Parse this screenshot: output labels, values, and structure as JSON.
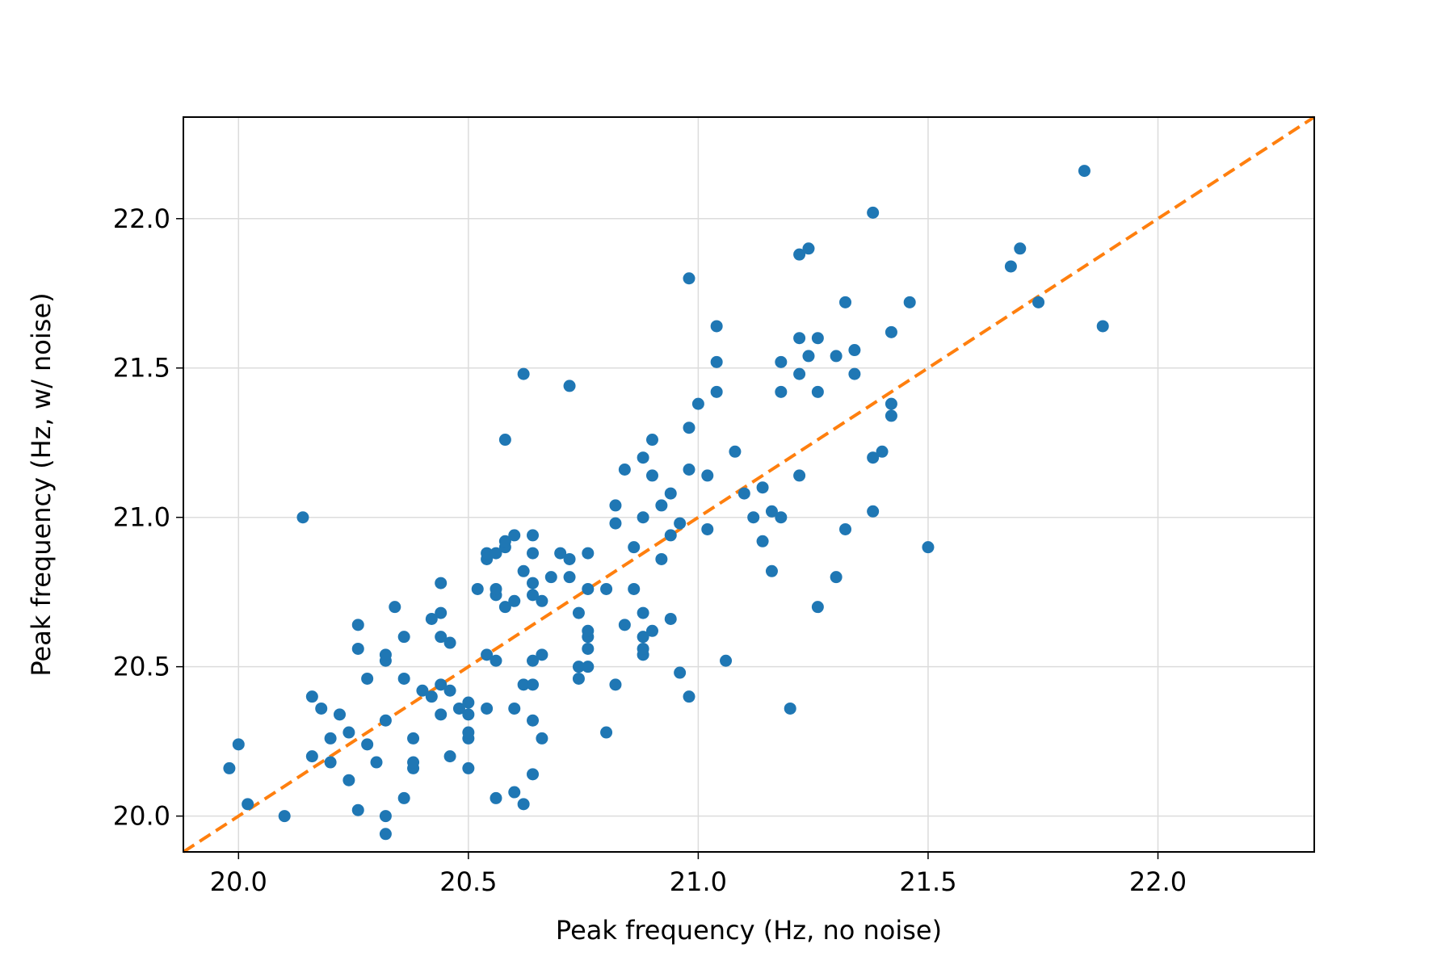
{
  "chart_data": {
    "type": "scatter",
    "title": "",
    "xlabel": "Peak frequency (Hz, no noise)",
    "ylabel": "Peak frequency (Hz, w/ noise)",
    "xlim": [
      19.88,
      22.34
    ],
    "ylim": [
      19.88,
      22.34
    ],
    "xticks": [
      "20.0",
      "20.5",
      "21.0",
      "21.5",
      "22.0"
    ],
    "yticks": [
      "20.0",
      "20.5",
      "21.0",
      "21.5",
      "22.0"
    ],
    "grid": true,
    "legend": "none",
    "colors": {
      "points": "#1f77b4",
      "reference_line": "#ff7f0e"
    },
    "reference_line": {
      "style": "dashed",
      "x": [
        19.88,
        22.34
      ],
      "y": [
        19.88,
        22.34
      ]
    },
    "series": [
      {
        "x": [
          19.98,
          20.0,
          20.02,
          20.1,
          20.14,
          20.16,
          20.16,
          20.18,
          20.2,
          20.2,
          20.22,
          20.24,
          20.24,
          20.26,
          20.26,
          20.26,
          20.28,
          20.28,
          20.3,
          20.32,
          20.32,
          20.32,
          20.32,
          20.32,
          20.34,
          20.36,
          20.36,
          20.36,
          20.38,
          20.38,
          20.38,
          20.4,
          20.42,
          20.42,
          20.44,
          20.44,
          20.44,
          20.44,
          20.44,
          20.46,
          20.46,
          20.46,
          20.48,
          20.5,
          20.5,
          20.5,
          20.5,
          20.5,
          20.52,
          20.54,
          20.54,
          20.54,
          20.54,
          20.56,
          20.56,
          20.56,
          20.56,
          20.56,
          20.58,
          20.58,
          20.58,
          20.58,
          20.6,
          20.6,
          20.6,
          20.6,
          20.62,
          20.62,
          20.62,
          20.62,
          20.64,
          20.64,
          20.64,
          20.64,
          20.64,
          20.64,
          20.64,
          20.64,
          20.66,
          20.66,
          20.66,
          20.68,
          20.7,
          20.72,
          20.72,
          20.72,
          20.74,
          20.74,
          20.74,
          20.76,
          20.76,
          20.76,
          20.76,
          20.76,
          20.76,
          20.8,
          20.8,
          20.82,
          20.82,
          20.82,
          20.84,
          20.84,
          20.86,
          20.86,
          20.88,
          20.88,
          20.88,
          20.88,
          20.88,
          20.88,
          20.9,
          20.9,
          20.9,
          20.92,
          20.92,
          20.94,
          20.94,
          20.94,
          20.96,
          20.96,
          20.98,
          20.98,
          20.98,
          20.98,
          21.0,
          21.02,
          21.02,
          21.04,
          21.04,
          21.04,
          21.06,
          21.08,
          21.1,
          21.12,
          21.14,
          21.14,
          21.16,
          21.16,
          21.18,
          21.18,
          21.18,
          21.2,
          21.22,
          21.22,
          21.22,
          21.22,
          21.24,
          21.24,
          21.26,
          21.26,
          21.26,
          21.3,
          21.3,
          21.32,
          21.32,
          21.34,
          21.34,
          21.38,
          21.38,
          21.38,
          21.4,
          21.42,
          21.42,
          21.42,
          21.46,
          21.5,
          21.68,
          21.7,
          21.74,
          21.84,
          21.88
        ],
        "y": [
          20.16,
          20.24,
          20.04,
          20.0,
          21.0,
          20.2,
          20.4,
          20.36,
          20.18,
          20.26,
          20.34,
          20.12,
          20.28,
          20.56,
          20.64,
          20.02,
          20.24,
          20.46,
          20.18,
          19.94,
          20.0,
          20.32,
          20.52,
          20.54,
          20.7,
          20.06,
          20.46,
          20.6,
          20.16,
          20.18,
          20.26,
          20.42,
          20.4,
          20.66,
          20.34,
          20.44,
          20.6,
          20.68,
          20.78,
          20.2,
          20.42,
          20.58,
          20.36,
          20.16,
          20.26,
          20.28,
          20.34,
          20.38,
          20.76,
          20.36,
          20.54,
          20.86,
          20.88,
          20.06,
          20.52,
          20.74,
          20.76,
          20.88,
          20.7,
          20.9,
          20.92,
          21.26,
          20.08,
          20.36,
          20.72,
          20.94,
          20.04,
          20.44,
          20.82,
          21.48,
          20.14,
          20.32,
          20.44,
          20.52,
          20.74,
          20.78,
          20.88,
          20.94,
          20.26,
          20.54,
          20.72,
          20.8,
          20.88,
          20.8,
          20.86,
          21.44,
          20.46,
          20.5,
          20.68,
          20.5,
          20.56,
          20.6,
          20.62,
          20.76,
          20.88,
          20.28,
          20.76,
          20.44,
          20.98,
          21.04,
          20.64,
          21.16,
          20.76,
          20.9,
          20.54,
          20.56,
          20.6,
          20.68,
          21.0,
          21.2,
          20.62,
          21.14,
          21.26,
          20.86,
          21.04,
          20.66,
          20.94,
          21.08,
          20.48,
          20.98,
          20.4,
          21.16,
          21.3,
          21.8,
          21.38,
          20.96,
          21.14,
          21.42,
          21.52,
          21.64,
          20.52,
          21.22,
          21.08,
          21.0,
          20.92,
          21.1,
          20.82,
          21.02,
          21.0,
          21.42,
          21.52,
          20.36,
          21.14,
          21.48,
          21.6,
          21.88,
          21.54,
          21.9,
          20.7,
          21.42,
          21.6,
          20.8,
          21.54,
          20.96,
          21.72,
          21.48,
          21.56,
          21.02,
          21.2,
          22.02,
          21.22,
          21.34,
          21.38,
          21.62,
          21.72,
          20.9,
          21.84,
          21.9,
          21.72,
          22.16,
          21.64
        ]
      }
    ]
  }
}
